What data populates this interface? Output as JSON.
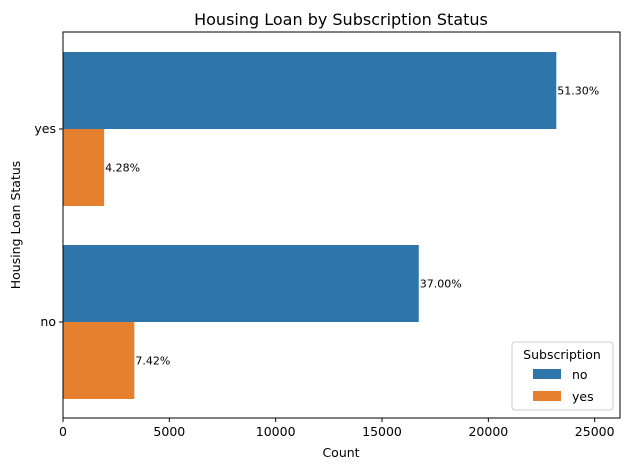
{
  "chart_data": {
    "type": "bar",
    "orientation": "horizontal",
    "title": "Housing Loan by Subscription Status",
    "xlabel": "Count",
    "ylabel": "Housing Loan Status",
    "categories": [
      "yes",
      "no"
    ],
    "series": [
      {
        "name": "no",
        "color": "#2e75a9",
        "values": [
          23195,
          16727
        ],
        "labels": [
          "51.30%",
          "37.00%"
        ]
      },
      {
        "name": "yes",
        "color": "#e4802e",
        "values": [
          1935,
          3354
        ],
        "labels": [
          "4.28%",
          "7.42%"
        ]
      }
    ],
    "xlim": [
      0,
      26190
    ],
    "xticks": [
      0,
      5000,
      10000,
      15000,
      20000,
      25000
    ],
    "xtick_labels": [
      "0",
      "5000",
      "10000",
      "15000",
      "20000",
      "25000"
    ],
    "grid": false,
    "legend": {
      "title": "Subscription",
      "position": "bottom-right",
      "entries": [
        "no",
        "yes"
      ]
    }
  }
}
